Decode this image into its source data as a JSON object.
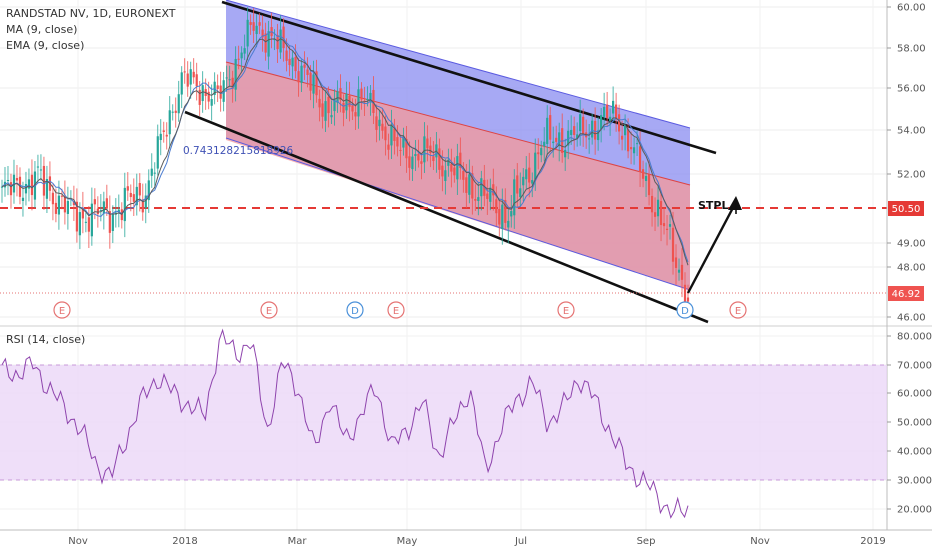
{
  "chart_data": [
    {
      "type": "candlestick",
      "title": "RANDSTAD NV, 1D, EURONEXT",
      "indicators": [
        "MA (9, close)",
        "EMA (9, close)"
      ],
      "y_ticks": [
        "60.00",
        "58.00",
        "56.00",
        "54.00",
        "52.00",
        "49.00",
        "48.00",
        "46.00"
      ],
      "x_ticks": [
        "Nov",
        "2018",
        "Mar",
        "May",
        "Jul",
        "Sep",
        "Nov",
        "2019"
      ],
      "price_badges": {
        "level": "50.50",
        "last": "46.92"
      },
      "annotations": {
        "channel_text": "0.743128215818926",
        "target_text": "STPL"
      },
      "events": [
        {
          "label": "E",
          "month": "Oct"
        },
        {
          "label": "E",
          "month": "Feb"
        },
        {
          "label": "D",
          "month": "Apr"
        },
        {
          "label": "E",
          "month": "Apr"
        },
        {
          "label": "E",
          "month": "Jul"
        },
        {
          "label": "D",
          "month": "Sep"
        },
        {
          "label": "E",
          "month": "Oct"
        }
      ],
      "series_approx": {
        "dates": [
          "Oct-10",
          "Nov-01",
          "Nov-20",
          "Dec-10",
          "Jan-01",
          "Jan-20",
          "Feb-10",
          "Feb-25",
          "Mar-15",
          "Apr-01",
          "Apr-20",
          "May-10",
          "Jun-01",
          "Jun-20",
          "Jul-05",
          "Jul-25",
          "Aug-10",
          "Aug-28",
          "Sep-05",
          "Sep-14"
        ],
        "close": [
          51.2,
          51.8,
          50.2,
          50.3,
          51.3,
          56.5,
          55.5,
          59.2,
          57.5,
          55.0,
          55.5,
          53.0,
          52.8,
          51.5,
          50.2,
          53.5,
          53.8,
          54.8,
          51.0,
          46.9
        ]
      }
    },
    {
      "type": "line",
      "title": "RSI (14, close)",
      "y_ticks": [
        "80.0000",
        "70.0000",
        "60.0000",
        "50.0000",
        "40.0000",
        "30.0000",
        "20.0000"
      ],
      "band": [
        30,
        70
      ],
      "values": [
        68,
        67,
        70,
        62,
        55,
        48,
        36,
        31,
        45,
        58,
        66,
        60,
        56,
        52,
        80,
        74,
        78,
        47,
        71,
        62,
        40,
        58,
        44,
        52,
        63,
        41,
        48,
        57,
        38,
        50,
        62,
        33,
        48,
        58,
        64,
        50,
        55,
        66,
        58,
        47,
        36,
        30,
        25,
        18,
        20
      ]
    }
  ]
}
